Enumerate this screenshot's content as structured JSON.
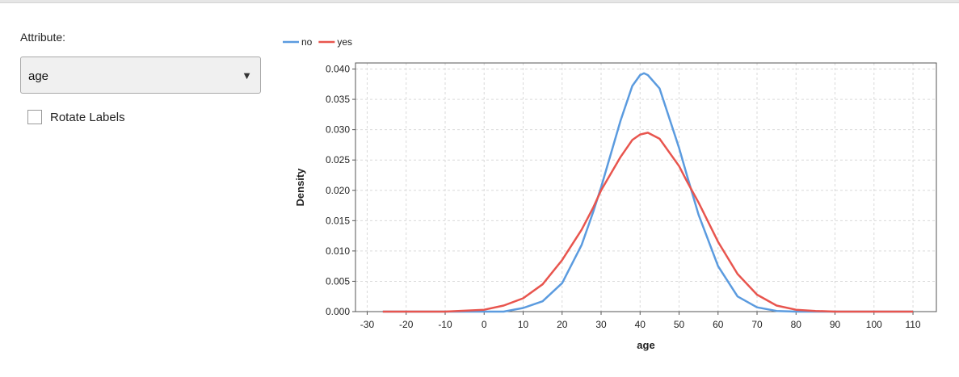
{
  "controls": {
    "attribute_label": "Attribute:",
    "attribute_value": "age",
    "rotate_labels_label": "Rotate Labels",
    "rotate_labels_checked": false
  },
  "chart_data": {
    "type": "line",
    "title": "",
    "xlabel": "age",
    "ylabel": "Density",
    "xlim": [
      -33,
      116
    ],
    "ylim": [
      0,
      0.041
    ],
    "xticks": [
      -30,
      -20,
      -10,
      0,
      10,
      20,
      30,
      40,
      50,
      60,
      70,
      80,
      90,
      100,
      110
    ],
    "yticks": [
      0.0,
      0.005,
      0.01,
      0.015,
      0.02,
      0.025,
      0.03,
      0.035,
      0.04
    ],
    "ytick_labels": [
      "0.000",
      "0.005",
      "0.010",
      "0.015",
      "0.020",
      "0.025",
      "0.030",
      "0.035",
      "0.040"
    ],
    "grid": true,
    "legend_position": "top-left",
    "series": [
      {
        "name": "no",
        "color": "#5b9bdf",
        "x": [
          -26,
          -20,
          -10,
          0,
          5,
          10,
          15,
          20,
          25,
          28,
          30,
          35,
          38,
          40,
          41,
          42,
          45,
          50,
          52,
          55,
          60,
          65,
          70,
          75,
          80,
          90,
          100,
          110
        ],
        "y": [
          0.0,
          0.0,
          0.0,
          0.0,
          0.0,
          0.0006,
          0.0017,
          0.0047,
          0.011,
          0.0165,
          0.0205,
          0.0315,
          0.0372,
          0.039,
          0.0393,
          0.039,
          0.0368,
          0.027,
          0.0225,
          0.016,
          0.0075,
          0.0025,
          0.0007,
          0.0001,
          0.0,
          0.0,
          0.0,
          0.0
        ]
      },
      {
        "name": "yes",
        "color": "#e8554e",
        "x": [
          -26,
          -20,
          -10,
          0,
          5,
          10,
          15,
          20,
          25,
          28,
          30,
          35,
          38,
          40,
          42,
          45,
          50,
          52,
          55,
          60,
          65,
          70,
          75,
          80,
          85,
          90,
          100,
          110
        ],
        "y": [
          0.0,
          0.0,
          0.0,
          0.0003,
          0.001,
          0.0022,
          0.0045,
          0.0085,
          0.0135,
          0.0172,
          0.02,
          0.0255,
          0.0283,
          0.0292,
          0.0295,
          0.0285,
          0.024,
          0.0215,
          0.018,
          0.0115,
          0.0062,
          0.0028,
          0.001,
          0.0003,
          0.0001,
          0.0,
          0.0,
          0.0
        ]
      }
    ]
  }
}
